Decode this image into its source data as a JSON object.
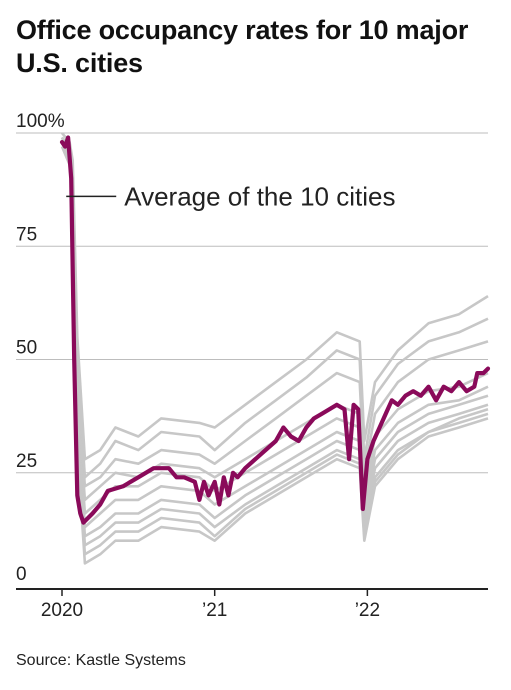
{
  "title": "Office occupancy rates for 10 major U.S. cities",
  "source": "Source: Kastle Systems",
  "colors": {
    "average": "#8a0a5a",
    "cities": "#c7c7c7",
    "grid": "#bdbdbd",
    "axis": "#222222"
  },
  "chart_data": {
    "type": "line",
    "title": "Office occupancy rates for 10 major U.S. cities",
    "xlabel": "",
    "ylabel": "",
    "ylim": [
      0,
      100
    ],
    "y_ticks": [
      100,
      75,
      50,
      25,
      0
    ],
    "y_tick_labels": [
      "100%",
      "75",
      "50",
      "25",
      "0"
    ],
    "x_ticks": [
      2020.0,
      2021.0,
      2022.0
    ],
    "x_tick_labels": [
      "2020",
      "’21",
      "’22"
    ],
    "xlim": [
      2020.0,
      2022.79
    ],
    "grid": true,
    "annotation": {
      "text": "Average of the 10 cities",
      "x": 2020.08,
      "y": 86
    },
    "series": [
      {
        "name": "Average of the 10 cities",
        "highlight": true,
        "x": [
          2020.0,
          2020.02,
          2020.04,
          2020.06,
          2020.08,
          2020.1,
          2020.12,
          2020.14,
          2020.2,
          2020.25,
          2020.3,
          2020.4,
          2020.5,
          2020.6,
          2020.7,
          2020.75,
          2020.8,
          2020.87,
          2020.9,
          2020.93,
          2020.96,
          2021.0,
          2021.03,
          2021.06,
          2021.09,
          2021.12,
          2021.15,
          2021.2,
          2021.3,
          2021.4,
          2021.45,
          2021.5,
          2021.55,
          2021.6,
          2021.65,
          2021.7,
          2021.8,
          2021.85,
          2021.88,
          2021.91,
          2021.94,
          2021.97,
          2022.0,
          2022.04,
          2022.08,
          2022.12,
          2022.16,
          2022.2,
          2022.25,
          2022.3,
          2022.35,
          2022.4,
          2022.45,
          2022.5,
          2022.55,
          2022.6,
          2022.65,
          2022.7,
          2022.72,
          2022.76,
          2022.79
        ],
        "values": [
          98,
          97,
          99,
          90,
          50,
          20,
          16,
          14,
          16,
          18,
          21,
          22,
          24,
          26,
          26,
          24,
          24,
          23,
          19,
          23,
          20,
          23,
          18,
          24,
          20,
          25,
          24,
          26,
          29,
          32,
          35,
          33,
          32,
          35,
          37,
          38,
          40,
          39,
          28,
          40,
          39,
          17,
          28,
          32,
          35,
          38,
          41,
          40,
          42,
          43,
          42,
          44,
          41,
          44,
          43,
          45,
          43,
          44,
          47,
          47,
          48
        ]
      },
      {
        "name": "",
        "x": [
          2020.0,
          2020.05,
          2020.07,
          2020.1,
          2020.15,
          2020.25,
          2020.35,
          2020.5,
          2020.65,
          2020.9,
          2021.0,
          2021.2,
          2021.4,
          2021.6,
          2021.8,
          2021.95,
          2021.98,
          2022.05,
          2022.2,
          2022.4,
          2022.6,
          2022.79
        ],
        "values": [
          100,
          98,
          94,
          55,
          28,
          30,
          35,
          33,
          37,
          36,
          35,
          40,
          45,
          50,
          56,
          54,
          32,
          45,
          52,
          58,
          60,
          64
        ]
      },
      {
        "name": "",
        "x": [
          2020.0,
          2020.05,
          2020.07,
          2020.1,
          2020.15,
          2020.25,
          2020.35,
          2020.5,
          2020.65,
          2020.9,
          2021.0,
          2021.2,
          2021.4,
          2021.6,
          2021.8,
          2021.95,
          2021.98,
          2022.05,
          2022.2,
          2022.4,
          2022.6,
          2022.79
        ],
        "values": [
          99,
          97,
          92,
          50,
          24,
          27,
          32,
          30,
          34,
          33,
          30,
          36,
          41,
          46,
          52,
          50,
          28,
          42,
          49,
          54,
          56,
          59
        ]
      },
      {
        "name": "",
        "x": [
          2020.0,
          2020.05,
          2020.07,
          2020.1,
          2020.15,
          2020.25,
          2020.35,
          2020.5,
          2020.65,
          2020.9,
          2021.0,
          2021.2,
          2021.4,
          2021.6,
          2021.8,
          2021.95,
          2021.98,
          2022.05,
          2022.2,
          2022.4,
          2022.6,
          2022.79
        ],
        "values": [
          98,
          96,
          90,
          45,
          22,
          24,
          28,
          27,
          30,
          29,
          27,
          32,
          37,
          42,
          47,
          45,
          25,
          38,
          45,
          50,
          52,
          54
        ]
      },
      {
        "name": "",
        "x": [
          2020.0,
          2020.05,
          2020.07,
          2020.1,
          2020.15,
          2020.25,
          2020.35,
          2020.5,
          2020.65,
          2020.9,
          2021.0,
          2021.2,
          2021.4,
          2021.6,
          2021.8,
          2021.95,
          2021.98,
          2022.05,
          2022.2,
          2022.4,
          2022.6,
          2022.79
        ],
        "values": [
          97,
          95,
          88,
          42,
          19,
          22,
          25,
          24,
          27,
          26,
          24,
          28,
          32,
          36,
          40,
          38,
          20,
          33,
          39,
          43,
          44,
          47
        ]
      },
      {
        "name": "",
        "x": [
          2020.0,
          2020.05,
          2020.07,
          2020.1,
          2020.15,
          2020.25,
          2020.35,
          2020.5,
          2020.65,
          2020.9,
          2021.0,
          2021.2,
          2021.4,
          2021.6,
          2021.8,
          2021.95,
          2021.98,
          2022.05,
          2022.2,
          2022.4,
          2022.6,
          2022.79
        ],
        "values": [
          99,
          96,
          89,
          40,
          16,
          19,
          22,
          22,
          25,
          24,
          21,
          25,
          29,
          33,
          37,
          35,
          18,
          30,
          36,
          40,
          41,
          44
        ]
      },
      {
        "name": "",
        "x": [
          2020.0,
          2020.05,
          2020.07,
          2020.1,
          2020.15,
          2020.25,
          2020.35,
          2020.5,
          2020.65,
          2020.9,
          2021.0,
          2021.2,
          2021.4,
          2021.6,
          2021.8,
          2021.95,
          2021.98,
          2022.05,
          2022.2,
          2022.4,
          2022.6,
          2022.79
        ],
        "values": [
          98,
          95,
          87,
          38,
          13,
          16,
          19,
          19,
          22,
          21,
          18,
          22,
          26,
          30,
          34,
          32,
          16,
          28,
          34,
          38,
          40,
          42
        ]
      },
      {
        "name": "",
        "x": [
          2020.0,
          2020.05,
          2020.07,
          2020.1,
          2020.15,
          2020.25,
          2020.35,
          2020.5,
          2020.65,
          2020.9,
          2021.0,
          2021.2,
          2021.4,
          2021.6,
          2021.8,
          2021.95,
          2021.98,
          2022.05,
          2022.2,
          2022.4,
          2022.6,
          2022.79
        ],
        "values": [
          97,
          94,
          86,
          36,
          11,
          13,
          16,
          16,
          19,
          18,
          15,
          20,
          24,
          28,
          32,
          30,
          14,
          26,
          32,
          36,
          38,
          40
        ]
      },
      {
        "name": "",
        "x": [
          2020.0,
          2020.05,
          2020.07,
          2020.1,
          2020.15,
          2020.25,
          2020.35,
          2020.5,
          2020.65,
          2020.9,
          2021.0,
          2021.2,
          2021.4,
          2021.6,
          2021.8,
          2021.95,
          2021.98,
          2022.05,
          2022.2,
          2022.4,
          2022.6,
          2022.79
        ],
        "values": [
          99,
          95,
          87,
          34,
          9,
          11,
          14,
          14,
          17,
          16,
          13,
          18,
          22,
          26,
          30,
          28,
          12,
          24,
          30,
          34,
          37,
          39
        ]
      },
      {
        "name": "",
        "x": [
          2020.0,
          2020.05,
          2020.07,
          2020.1,
          2020.15,
          2020.25,
          2020.35,
          2020.5,
          2020.65,
          2020.9,
          2021.0,
          2021.2,
          2021.4,
          2021.6,
          2021.8,
          2021.95,
          2021.98,
          2022.05,
          2022.2,
          2022.4,
          2022.6,
          2022.79
        ],
        "values": [
          98,
          94,
          85,
          32,
          7,
          9,
          12,
          12,
          15,
          14,
          11,
          17,
          21,
          25,
          29,
          27,
          11,
          23,
          29,
          34,
          36,
          38
        ]
      },
      {
        "name": "",
        "x": [
          2020.0,
          2020.05,
          2020.07,
          2020.1,
          2020.15,
          2020.25,
          2020.35,
          2020.5,
          2020.65,
          2020.9,
          2021.0,
          2021.2,
          2021.4,
          2021.6,
          2021.8,
          2021.95,
          2021.98,
          2022.05,
          2022.2,
          2022.4,
          2022.6,
          2022.79
        ],
        "values": [
          97,
          93,
          84,
          30,
          5,
          7,
          10,
          10,
          13,
          12,
          10,
          16,
          20,
          24,
          28,
          26,
          10,
          22,
          28,
          33,
          35,
          37
        ]
      }
    ]
  }
}
